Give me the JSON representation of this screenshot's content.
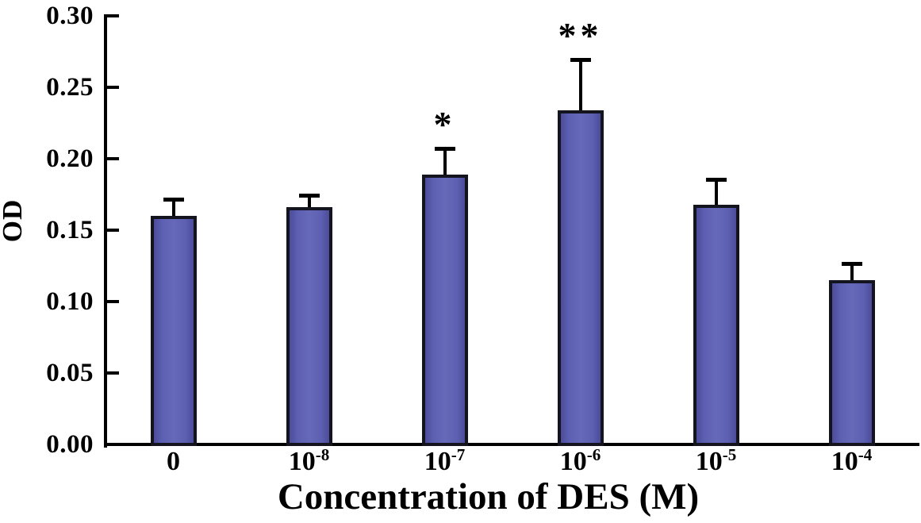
{
  "chart_data": {
    "type": "bar",
    "title": "",
    "xlabel": "Concentration of DES (M)",
    "ylabel": "OD",
    "categories": [
      {
        "base": "0",
        "exp": ""
      },
      {
        "base": "10",
        "exp": "-8"
      },
      {
        "base": "10",
        "exp": "-7"
      },
      {
        "base": "10",
        "exp": "-6"
      },
      {
        "base": "10",
        "exp": "-5"
      },
      {
        "base": "10",
        "exp": "-4"
      }
    ],
    "values": [
      0.16,
      0.166,
      0.189,
      0.234,
      0.168,
      0.115
    ],
    "errors": [
      0.012,
      0.009,
      0.019,
      0.036,
      0.018,
      0.012
    ],
    "significance": [
      "",
      "",
      "*",
      "**",
      "",
      ""
    ],
    "ylim": [
      0.0,
      0.3
    ],
    "ytick_step": 0.05,
    "ytick_labels": [
      "0.00",
      "0.05",
      "0.10",
      "0.15",
      "0.20",
      "0.25",
      "0.30"
    ],
    "grid": false,
    "legend": "none",
    "error_bar_style": "upward only, capped",
    "colors": {
      "bar_fill": "#5d5fb2",
      "bar_fill_edge": "#4b4c99",
      "bar_border": "#14141f",
      "axis": "#000000",
      "text": "#000000",
      "background": "#ffffff"
    }
  }
}
